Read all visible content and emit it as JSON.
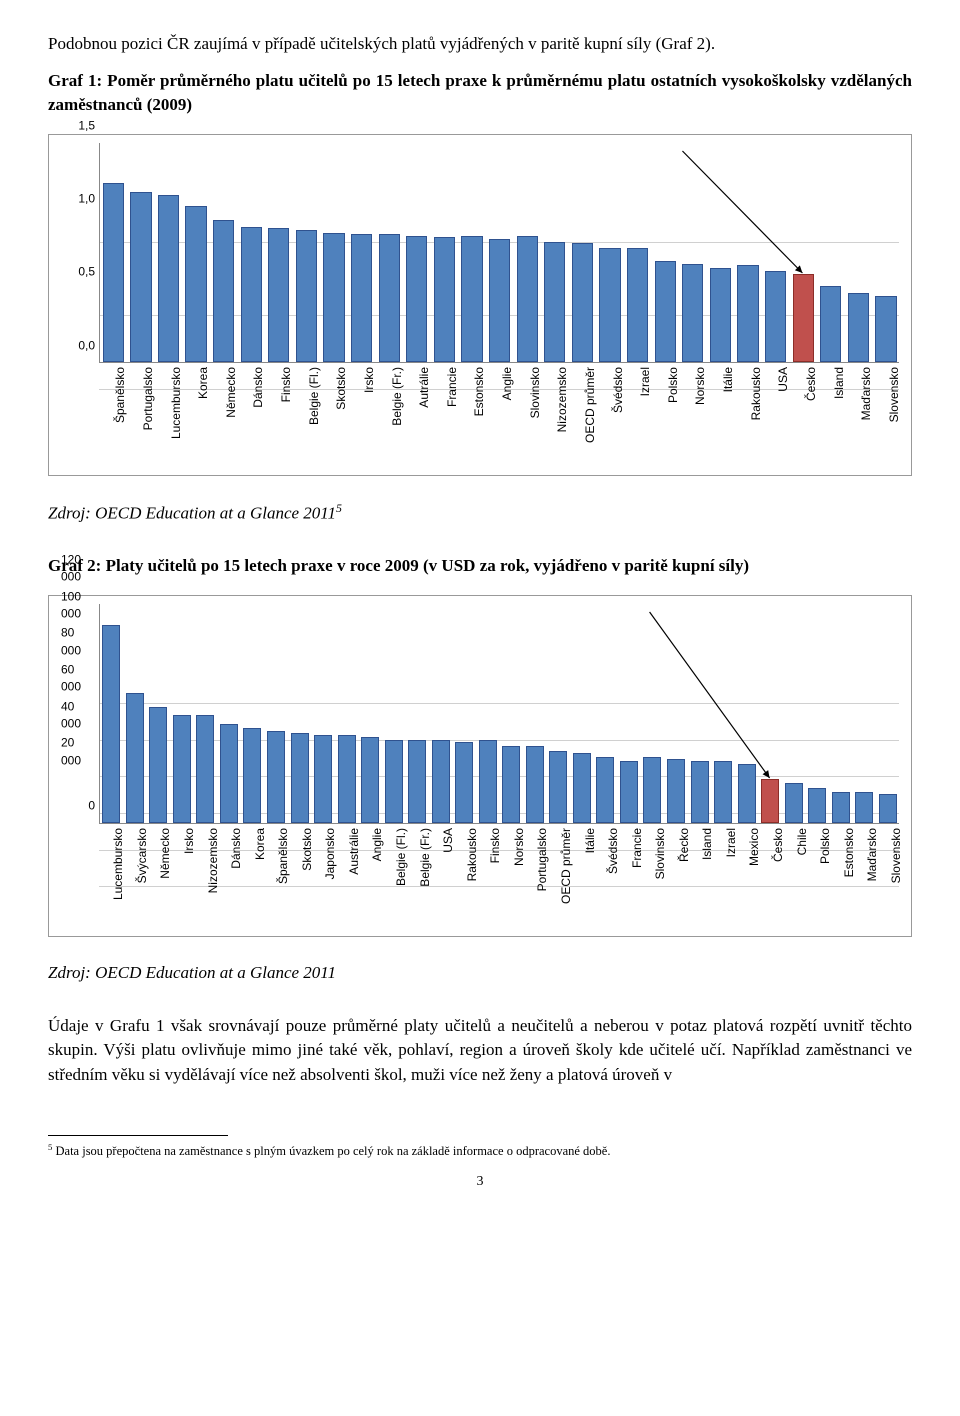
{
  "intro_text": "Podobnou pozici ČR zaujímá v případě učitelských platů vyjádřených v paritě kupní síly (Graf 2).",
  "chart1": {
    "type": "bar",
    "title": "Graf 1: Poměr průměrného platu učitelů po 15 letech praxe k průměrnému platu ostatních vysokoškolsky vzdělaných zaměstnanců (2009)",
    "source": "Zdroj: OECD Education at a Glance 2011",
    "source_sup": "5",
    "ylim": [
      0,
      1.5
    ],
    "yticks": [
      "0,0",
      "0,5",
      "1,0",
      "1,5"
    ],
    "bar_color": "#4f81bd",
    "highlight_color": "#c0504d",
    "border_color": "#2f528f",
    "categories": [
      "Španělsko",
      "Portugalsko",
      "Lucembursko",
      "Korea",
      "Německo",
      "Dánsko",
      "Finsko",
      "Belgie (Fl.)",
      "Skotsko",
      "Irsko",
      "Belgie (Fr.)",
      "Autrálie",
      "Francie",
      "Estonsko",
      "Anglie",
      "Slovinsko",
      "Nizozemsko",
      "OECD průměr",
      "Švédsko",
      "Izrael",
      "Polsko",
      "Norsko",
      "Itálie",
      "Rakousko",
      "USA",
      "Česko",
      "Island",
      "Maďarsko",
      "Slovensko"
    ],
    "values": [
      1.22,
      1.16,
      1.14,
      1.06,
      0.97,
      0.92,
      0.91,
      0.9,
      0.88,
      0.87,
      0.87,
      0.86,
      0.85,
      0.86,
      0.84,
      0.86,
      0.82,
      0.81,
      0.78,
      0.78,
      0.69,
      0.67,
      0.64,
      0.66,
      0.62,
      0.6,
      0.52,
      0.47,
      0.45
    ],
    "highlight_index": 25
  },
  "chart2": {
    "type": "bar",
    "title": "Graf 2: Platy učitelů po 15 letech praxe v roce 2009 (v USD za rok, vyjádřeno v paritě kupní síly)",
    "source": "Zdroj: OECD Education at a Glance 2011",
    "ylim": [
      0,
      120000
    ],
    "yticks": [
      "0",
      "20 000",
      "40 000",
      "60 000",
      "80 000",
      "100 000",
      "120 000"
    ],
    "bar_color": "#4f81bd",
    "highlight_color": "#c0504d",
    "border_color": "#2f528f",
    "categories": [
      "Lucembursko",
      "Švýcarsko",
      "Německo",
      "Irsko",
      "Nizozemsko",
      "Dánsko",
      "Korea",
      "Španělsko",
      "Skotsko",
      "Japonsko",
      "Austrálie",
      "Anglie",
      "Belgie (Fl.)",
      "Belgie (Fr.)",
      "USA",
      "Rakousko",
      "Finsko",
      "Norsko",
      "Portugalsko",
      "OECD průměr",
      "Itálie",
      "Švédsko",
      "Francie",
      "Slovinsko",
      "Řecko",
      "Island",
      "Izrael",
      "Mexico",
      "Česko",
      "Chile",
      "Polsko",
      "Estonsko",
      "Maďarsko",
      "Slovensko"
    ],
    "values": [
      108000,
      71000,
      63000,
      59000,
      59000,
      54000,
      52000,
      50000,
      49000,
      48000,
      48000,
      47000,
      45000,
      45000,
      45000,
      44000,
      45000,
      42000,
      42000,
      39000,
      38000,
      36000,
      34000,
      36000,
      35000,
      34000,
      34000,
      32000,
      24000,
      22000,
      19000,
      17000,
      17000,
      16000
    ],
    "highlight_index": 28
  },
  "body_text": "Údaje v Grafu 1 však srovnávají pouze průměrné platy učitelů a neučitelů a neberou v potaz platová rozpětí uvnitř těchto skupin. Výši platu ovlivňuje mimo jiné také věk, pohlaví, region a úroveň školy kde učitelé učí. Například zaměstnanci ve středním věku si vydělávají více než absolventi škol, muži více než ženy a platová úroveň v",
  "footnote": {
    "num": "5",
    "text": " Data jsou přepočtena na zaměstnance s plným úvazkem po celý rok na základě informace o odpracované době."
  },
  "page_number": "3"
}
